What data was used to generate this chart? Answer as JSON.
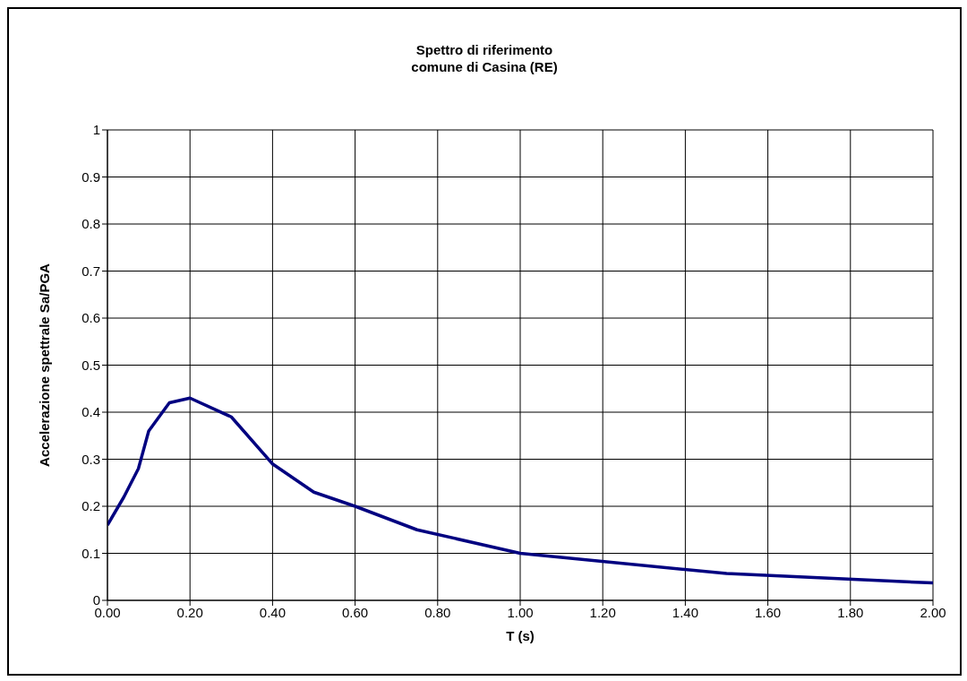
{
  "chart_data": {
    "type": "line",
    "title": "Spettro di riferimento\ncomune di Casina (RE)",
    "xlabel": "T (s)",
    "ylabel": "Accelerazione spettrale Sa/PGA",
    "x": [
      0,
      0.04,
      0.075,
      0.1,
      0.15,
      0.2,
      0.3,
      0.4,
      0.5,
      0.6,
      0.75,
      1.0,
      1.5,
      2.0
    ],
    "series": [
      {
        "color": "#000080",
        "values": [
          0.16,
          0.22,
          0.28,
          0.36,
          0.42,
          0.43,
          0.39,
          0.29,
          0.23,
          0.2,
          0.15,
          0.1,
          0.057,
          0.037
        ]
      }
    ],
    "xlim": [
      0,
      2
    ],
    "xticks": [
      {
        "value": 0,
        "label": "0.00"
      },
      {
        "value": 0.2,
        "label": "0.20"
      },
      {
        "value": 0.4,
        "label": "0.40"
      },
      {
        "value": 0.6,
        "label": "0.60"
      },
      {
        "value": 0.8,
        "label": "0.80"
      },
      {
        "value": 1,
        "label": "1.00"
      },
      {
        "value": 1.2,
        "label": "1.20"
      },
      {
        "value": 1.4,
        "label": "1.40"
      },
      {
        "value": 1.6,
        "label": "1.60"
      },
      {
        "value": 1.8,
        "label": "1.80"
      },
      {
        "value": 2,
        "label": "2.00"
      }
    ],
    "ylim": [
      0,
      1
    ],
    "yticks": [
      0,
      0.1,
      0.2,
      0.3,
      0.4,
      0.5,
      0.6,
      0.7,
      0.8,
      0.9,
      1
    ],
    "grid": true,
    "marker": "none",
    "line_style": "solid"
  }
}
